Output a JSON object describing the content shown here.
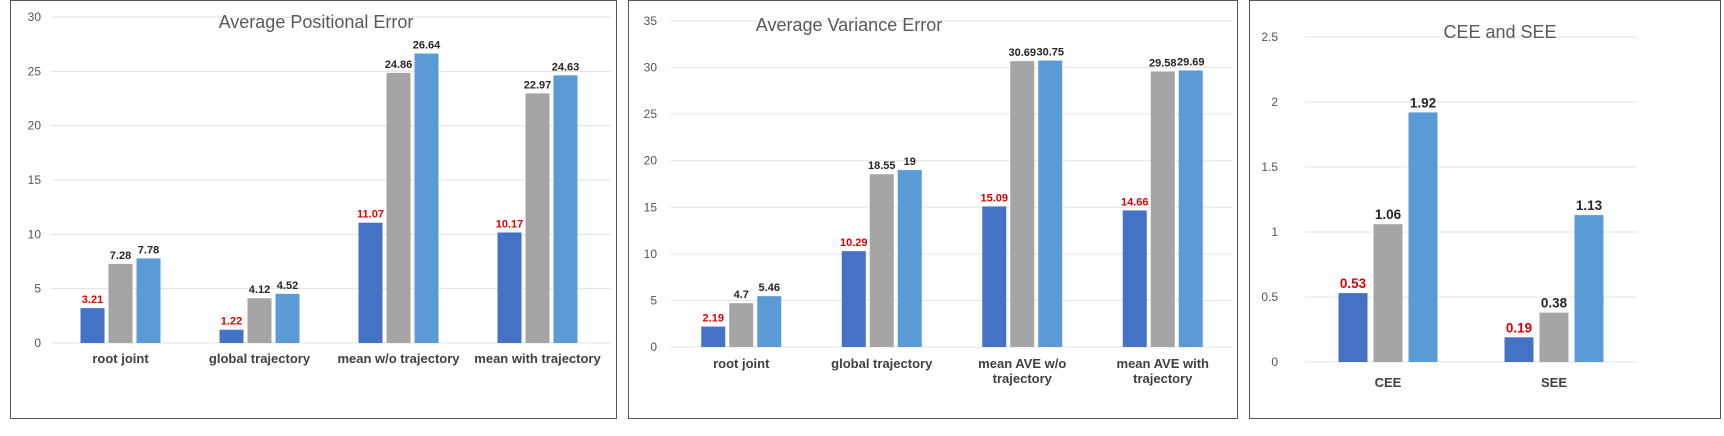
{
  "chart_data": [
    {
      "type": "bar",
      "title": "Average Positional Error",
      "categories": [
        [
          "root joint"
        ],
        [
          "global trajectory"
        ],
        [
          "mean w/o trajectory"
        ],
        [
          "mean with trajectory"
        ]
      ],
      "series": [
        {
          "name": "series 1",
          "color": "#4472c4",
          "values": [
            3.21,
            1.22,
            11.07,
            10.17
          ],
          "labels": [
            "3.21",
            "1.22",
            "11.07",
            "10.17"
          ]
        },
        {
          "name": "series 2",
          "color": "#a5a5a5",
          "values": [
            7.28,
            4.12,
            24.86,
            22.97
          ],
          "labels": [
            "7.28",
            "4.12",
            "24.86",
            "22.97"
          ]
        },
        {
          "name": "series 3",
          "color": "#5b9bd5",
          "values": [
            7.78,
            4.52,
            26.64,
            24.63
          ],
          "labels": [
            "7.78",
            "4.52",
            "26.64",
            "24.63"
          ]
        }
      ],
      "ylim": [
        0,
        30
      ],
      "yticks": [
        "0",
        "5",
        "10",
        "15",
        "20",
        "25",
        "30"
      ],
      "ytick_values": [
        0,
        5,
        10,
        15,
        20,
        25,
        30
      ],
      "highlight_color": "#e00000"
    },
    {
      "type": "bar",
      "title": "Average Variance Error",
      "categories": [
        [
          "root joint"
        ],
        [
          "global trajectory"
        ],
        [
          "mean AVE w/o",
          "trajectory"
        ],
        [
          "mean AVE with",
          "trajectory"
        ]
      ],
      "series": [
        {
          "name": "series 1",
          "color": "#4472c4",
          "values": [
            2.19,
            10.29,
            15.09,
            14.66
          ],
          "labels": [
            "2.19",
            "10.29",
            "15.09",
            "14.66"
          ]
        },
        {
          "name": "series 2",
          "color": "#a5a5a5",
          "values": [
            4.7,
            18.55,
            30.69,
            29.58
          ],
          "labels": [
            "4.7",
            "18.55",
            "30.69",
            "29.58"
          ]
        },
        {
          "name": "series 3",
          "color": "#5b9bd5",
          "values": [
            5.46,
            19,
            30.75,
            29.69
          ],
          "labels": [
            "5.46",
            "19",
            "30.75",
            "29.69"
          ]
        }
      ],
      "ylim": [
        0,
        35
      ],
      "yticks": [
        "0",
        "5",
        "10",
        "15",
        "20",
        "25",
        "30",
        "35"
      ],
      "ytick_values": [
        0,
        5,
        10,
        15,
        20,
        25,
        30,
        35
      ],
      "highlight_color": "#e00000"
    },
    {
      "type": "bar",
      "title": "CEE and SEE",
      "categories": [
        [
          "CEE"
        ],
        [
          "SEE"
        ]
      ],
      "series": [
        {
          "name": "series 1",
          "color": "#4472c4",
          "values": [
            0.53,
            0.19
          ],
          "labels": [
            "0.53",
            "0.19"
          ]
        },
        {
          "name": "series 2",
          "color": "#a5a5a5",
          "values": [
            1.06,
            0.38
          ],
          "labels": [
            "1.06",
            "0.38"
          ]
        },
        {
          "name": "series 3",
          "color": "#5b9bd5",
          "values": [
            1.92,
            1.13
          ],
          "labels": [
            "1.92",
            "1.13"
          ]
        }
      ],
      "ylim": [
        0,
        2.5
      ],
      "yticks": [
        "0",
        "0.5",
        "1",
        "1.5",
        "2",
        "2.5"
      ],
      "ytick_values": [
        0,
        0.5,
        1,
        1.5,
        2,
        2.5
      ],
      "highlight_color": "#e00000"
    }
  ]
}
